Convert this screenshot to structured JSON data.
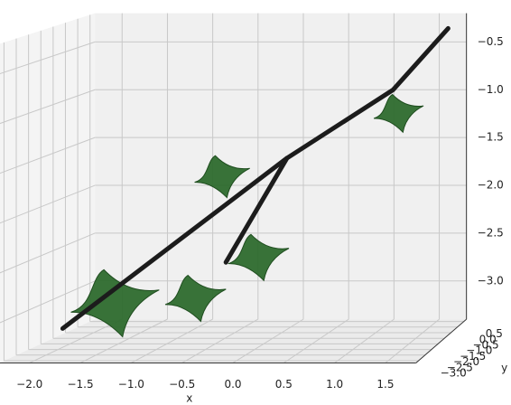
{
  "chart_data": {
    "type": "surface3d",
    "xlabel": "x",
    "ylabel": "y",
    "xlim": [
      -2.3,
      1.8
    ],
    "ylim": [
      -3.2,
      0.7
    ],
    "zlim": [
      -3.4,
      -0.2
    ],
    "xticks": [
      {
        "value": -2,
        "label": "−2.0"
      },
      {
        "value": -1.5,
        "label": "−1.5"
      },
      {
        "value": -1,
        "label": "−1.0"
      },
      {
        "value": -0.5,
        "label": "−0.5"
      },
      {
        "value": 0,
        "label": "0.0"
      },
      {
        "value": 0.5,
        "label": "0.5"
      },
      {
        "value": 1,
        "label": "1.0"
      },
      {
        "value": 1.5,
        "label": "1.5"
      }
    ],
    "yticks": [
      {
        "value": 0.5,
        "label": "0.5"
      },
      {
        "value": 0,
        "label": "0.0"
      },
      {
        "value": -0.5,
        "label": "−0.5"
      },
      {
        "value": -1,
        "label": "−1.0"
      },
      {
        "value": -1.5,
        "label": "−1.5"
      },
      {
        "value": -2,
        "label": "−2.0"
      },
      {
        "value": -2.5,
        "label": "−2.5"
      },
      {
        "value": -3,
        "label": "−3.0"
      }
    ],
    "zticks": [
      {
        "value": -0.5,
        "label": "−0.5"
      },
      {
        "value": -1,
        "label": "−1.0"
      },
      {
        "value": -1.5,
        "label": "−1.5"
      },
      {
        "value": -2,
        "label": "−2.0"
      },
      {
        "value": -2.5,
        "label": "−2.5"
      },
      {
        "value": -3,
        "label": "−3.0"
      }
    ],
    "grid": true,
    "branches": [
      {
        "x": [
          -2.2,
          0.15,
          1.26,
          1.7
        ],
        "y": [
          -1,
          -1,
          -1,
          0
        ],
        "z": [
          -3.3,
          -1.55,
          -0.85,
          -0.3
        ]
      },
      {
        "x": [
          0.15,
          -0.49
        ],
        "y": [
          -1,
          -1
        ],
        "z": [
          -1.55,
          -2.62
        ]
      }
    ],
    "branch_color": "#1c1c1c",
    "leaves": {
      "x": [
        -1.67,
        -0.82,
        -0.16,
        -0.54,
        1.31
      ],
      "y": [
        -1,
        -1,
        -1,
        -1,
        -1
      ],
      "z": [
        -3.04,
        -2.99,
        -2.57,
        -1.74,
        -1.09
      ],
      "size": [
        1.6,
        1.1,
        1.1,
        1.0,
        0.9
      ]
    },
    "leaf_color": "#2d6a2d"
  }
}
